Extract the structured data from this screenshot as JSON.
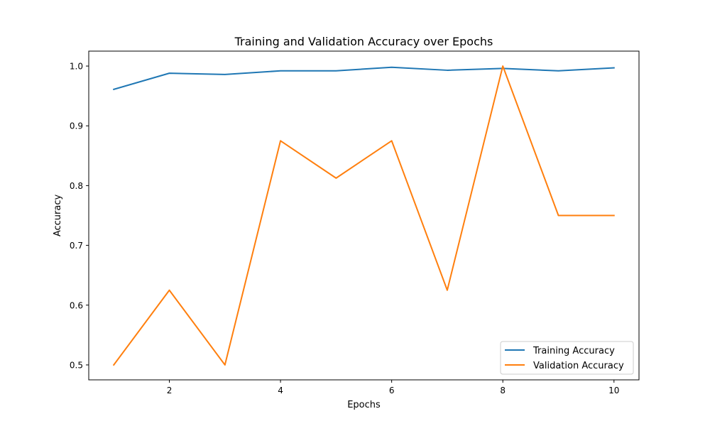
{
  "chart_data": {
    "type": "line",
    "title": "Training and Validation Accuracy over Epochs",
    "xlabel": "Epochs",
    "ylabel": "Accuracy",
    "x": [
      1,
      2,
      3,
      4,
      5,
      6,
      7,
      8,
      9,
      10
    ],
    "xlim": [
      0.55,
      10.45
    ],
    "ylim": [
      0.475,
      1.025
    ],
    "xticks": [
      2,
      4,
      6,
      8,
      10
    ],
    "xtick_labels": [
      "2",
      "4",
      "6",
      "8",
      "10"
    ],
    "yticks": [
      0.5,
      0.6,
      0.7,
      0.8,
      0.9,
      1.0
    ],
    "ytick_labels": [
      "0.5",
      "0.6",
      "0.7",
      "0.8",
      "0.9",
      "1.0"
    ],
    "grid": false,
    "legend_position": "bottom-right",
    "series": [
      {
        "name": "Training Accuracy",
        "color": "#1f77b4",
        "values": [
          0.961,
          0.988,
          0.986,
          0.992,
          0.992,
          0.998,
          0.993,
          0.996,
          0.992,
          0.997
        ]
      },
      {
        "name": "Validation Accuracy",
        "color": "#ff7f0e",
        "values": [
          0.5,
          0.625,
          0.5,
          0.875,
          0.8125,
          0.875,
          0.625,
          1.0,
          0.75,
          0.75
        ]
      }
    ]
  }
}
